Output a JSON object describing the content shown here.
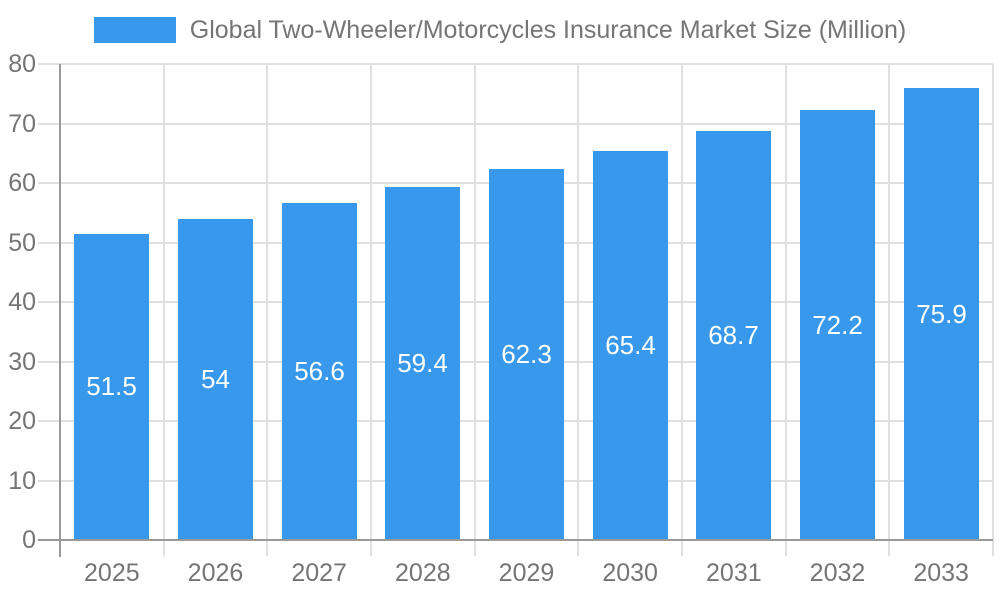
{
  "chart_data": {
    "type": "bar",
    "title": "Global Two-Wheeler/Motorcycles Insurance Market Size (Million)",
    "categories": [
      "2025",
      "2026",
      "2027",
      "2028",
      "2029",
      "2030",
      "2031",
      "2032",
      "2033"
    ],
    "values": [
      51.5,
      54,
      56.6,
      59.4,
      62.3,
      65.4,
      68.7,
      72.2,
      75.9
    ],
    "xlabel": "",
    "ylabel": "",
    "ylim": [
      0,
      80
    ],
    "ytick_step": 10,
    "yticks": [
      0,
      10,
      20,
      30,
      40,
      50,
      60,
      70,
      80
    ],
    "grid": true,
    "legend_position": "top",
    "value_labels": "inside-center",
    "colors": {
      "bar": "#3899EC",
      "grid": "#e0e0e0",
      "axis": "#999999",
      "text": "#757575",
      "value_text": "#ffffff",
      "background": "#ffffff"
    }
  }
}
